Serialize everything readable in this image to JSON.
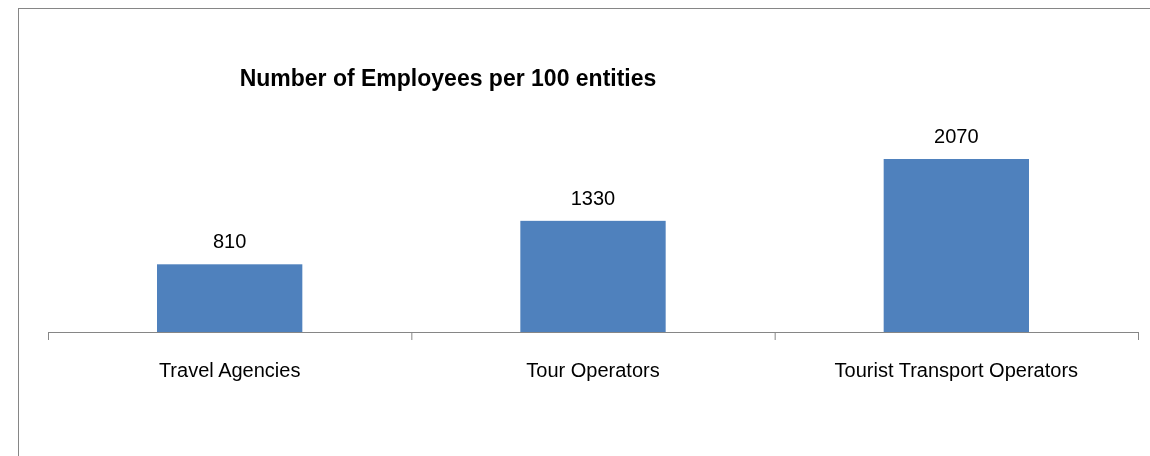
{
  "chart_data": {
    "type": "bar",
    "title": "Number of Employees per 100 entities",
    "categories": [
      "Travel Agencies",
      "Tour Operators",
      "Tourist Transport Operators"
    ],
    "values": [
      810,
      1330,
      2070
    ],
    "color": "#4f81bd",
    "data_labels": true
  }
}
